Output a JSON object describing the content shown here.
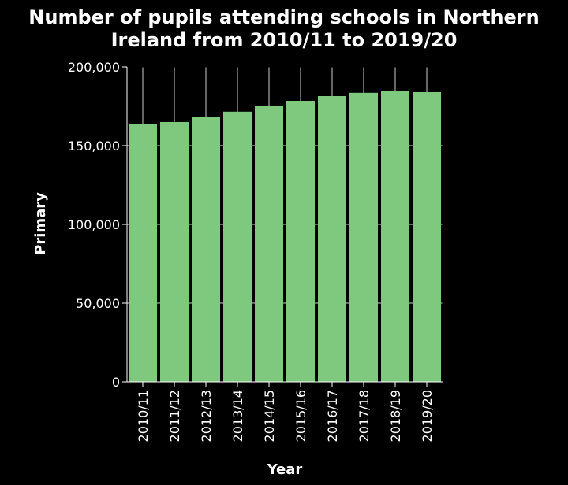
{
  "chart_data": {
    "type": "bar",
    "title_line1": "Number of pupils attending schools in Northern",
    "title_line2": "Ireland from 2010/11 to 2019/20",
    "xlabel": "Year",
    "ylabel": "Primary",
    "categories": [
      "2010/11",
      "2011/12",
      "2012/13",
      "2013/14",
      "2014/15",
      "2015/16",
      "2016/17",
      "2017/18",
      "2018/19",
      "2019/20"
    ],
    "values": [
      163600,
      165000,
      168300,
      171600,
      175000,
      178500,
      181500,
      183600,
      184600,
      184000
    ],
    "ylim": [
      0,
      200000
    ],
    "yticks": [
      0,
      50000,
      100000,
      150000,
      200000
    ],
    "ytick_labels": [
      "0",
      "50,000",
      "100,000",
      "150,000",
      "200,000"
    ],
    "grid": true,
    "legend": "none",
    "colors": {
      "background": "#000000",
      "bar": "#7fc97f",
      "grid": "#cccccc",
      "text": "#ffffff"
    }
  }
}
